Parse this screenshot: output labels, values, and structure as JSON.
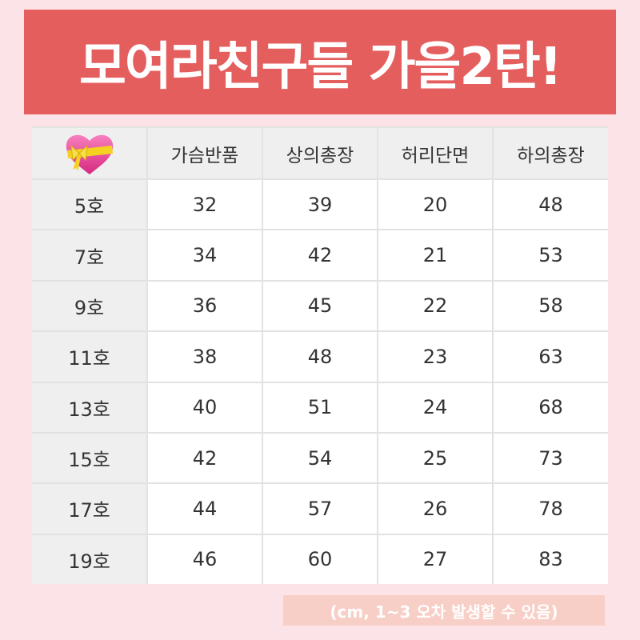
{
  "title": "모여라친구들 가을2탄!",
  "table": {
    "corner_icon": "heart-with-ribbon-icon",
    "headers": [
      "가슴반품",
      "상의총장",
      "허리단면",
      "하의총장"
    ],
    "rows": [
      {
        "size": "5호",
        "values": [
          "32",
          "39",
          "20",
          "48"
        ]
      },
      {
        "size": "7호",
        "values": [
          "34",
          "42",
          "21",
          "53"
        ]
      },
      {
        "size": "9호",
        "values": [
          "36",
          "45",
          "22",
          "58"
        ]
      },
      {
        "size": "11호",
        "values": [
          "38",
          "48",
          "23",
          "63"
        ]
      },
      {
        "size": "13호",
        "values": [
          "40",
          "51",
          "24",
          "68"
        ]
      },
      {
        "size": "15호",
        "values": [
          "42",
          "54",
          "25",
          "73"
        ]
      },
      {
        "size": "17호",
        "values": [
          "44",
          "57",
          "26",
          "78"
        ]
      },
      {
        "size": "19호",
        "values": [
          "46",
          "60",
          "27",
          "83"
        ]
      }
    ]
  },
  "footer_note": "(cm, 1~3 오차 발생할 수 있음)",
  "colors": {
    "background": "#fbe3e8",
    "banner": "#e55e5e",
    "footer": "#f8cfc6"
  }
}
